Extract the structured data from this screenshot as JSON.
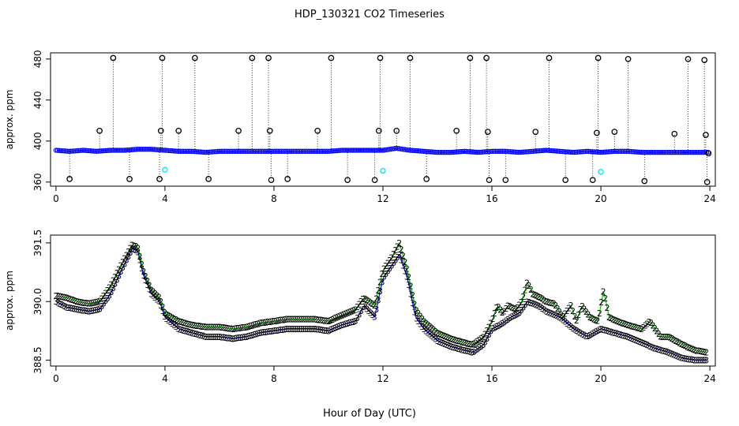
{
  "title": "HDP_130321  CO2 Timeseries",
  "xlabel": "Hour of Day (UTC)",
  "colors": {
    "black": "#000000",
    "blue": "#0000ff",
    "green": "#00cc00",
    "cyan": "#00e5e5"
  },
  "chart_data": [
    {
      "type": "scatter",
      "ylabel": "approx. ppm",
      "xlim": [
        -0.2,
        24.2
      ],
      "ylim": [
        356,
        486
      ],
      "xticks": [
        0,
        4,
        8,
        12,
        16,
        20,
        24
      ],
      "yticks": [
        360,
        400,
        440,
        480
      ],
      "base": {
        "x": [
          0,
          0.5,
          1,
          1.5,
          2,
          2.5,
          3,
          3.5,
          4,
          4.5,
          5,
          5.5,
          6,
          6.5,
          7,
          7.5,
          8,
          8.5,
          9,
          9.5,
          10,
          10.5,
          11,
          11.5,
          12,
          12.5,
          13,
          13.5,
          14,
          14.5,
          15,
          15.5,
          16,
          16.5,
          17,
          17.5,
          18,
          18.5,
          19,
          19.5,
          20,
          20.5,
          21,
          21.5,
          22,
          22.5,
          23,
          23.5,
          24
        ],
        "y": [
          391,
          390,
          391,
          390,
          391,
          391,
          392,
          392,
          391,
          390,
          390,
          389,
          390,
          390,
          390,
          390,
          390,
          390,
          390,
          390,
          390,
          391,
          391,
          391,
          391,
          393,
          391,
          390,
          389,
          389,
          390,
          389,
          390,
          390,
          389,
          390,
          391,
          390,
          389,
          390,
          389,
          390,
          390,
          389,
          389,
          389,
          389,
          389,
          389
        ]
      },
      "outliers_high": [
        {
          "x": 1.6,
          "y": 410
        },
        {
          "x": 2.1,
          "y": 481
        },
        {
          "x": 3.9,
          "y": 481
        },
        {
          "x": 3.85,
          "y": 410
        },
        {
          "x": 4.5,
          "y": 410
        },
        {
          "x": 5.1,
          "y": 481
        },
        {
          "x": 6.7,
          "y": 410
        },
        {
          "x": 7.2,
          "y": 481
        },
        {
          "x": 7.8,
          "y": 481
        },
        {
          "x": 7.85,
          "y": 410
        },
        {
          "x": 9.6,
          "y": 410
        },
        {
          "x": 10.1,
          "y": 481
        },
        {
          "x": 11.9,
          "y": 481
        },
        {
          "x": 11.85,
          "y": 410
        },
        {
          "x": 12.5,
          "y": 410
        },
        {
          "x": 13.0,
          "y": 481
        },
        {
          "x": 14.7,
          "y": 410
        },
        {
          "x": 15.2,
          "y": 481
        },
        {
          "x": 15.8,
          "y": 481
        },
        {
          "x": 15.85,
          "y": 409
        },
        {
          "x": 17.6,
          "y": 409
        },
        {
          "x": 18.1,
          "y": 481
        },
        {
          "x": 19.9,
          "y": 481
        },
        {
          "x": 19.85,
          "y": 408
        },
        {
          "x": 20.5,
          "y": 409
        },
        {
          "x": 21.0,
          "y": 480
        },
        {
          "x": 22.7,
          "y": 407
        },
        {
          "x": 23.2,
          "y": 480
        },
        {
          "x": 23.8,
          "y": 479
        },
        {
          "x": 23.85,
          "y": 406
        }
      ],
      "outliers_low": [
        {
          "x": 0.5,
          "y": 363
        },
        {
          "x": 2.7,
          "y": 363
        },
        {
          "x": 3.8,
          "y": 363
        },
        {
          "x": 5.6,
          "y": 363
        },
        {
          "x": 7.9,
          "y": 362
        },
        {
          "x": 8.5,
          "y": 363
        },
        {
          "x": 10.7,
          "y": 362
        },
        {
          "x": 11.7,
          "y": 362
        },
        {
          "x": 13.6,
          "y": 363
        },
        {
          "x": 15.9,
          "y": 362
        },
        {
          "x": 16.5,
          "y": 362
        },
        {
          "x": 18.7,
          "y": 362
        },
        {
          "x": 19.7,
          "y": 362
        },
        {
          "x": 21.6,
          "y": 361
        },
        {
          "x": 23.9,
          "y": 360
        }
      ],
      "cyan_points": [
        {
          "x": 4.0,
          "y": 372
        },
        {
          "x": 12.0,
          "y": 371
        },
        {
          "x": 20.0,
          "y": 370
        }
      ],
      "last_point": {
        "x": 23.95,
        "y": 388
      }
    },
    {
      "type": "line",
      "ylabel": "approx. ppm",
      "xlim": [
        -0.2,
        24.2
      ],
      "ylim": [
        388.35,
        391.7
      ],
      "xticks": [
        0,
        4,
        8,
        12,
        16,
        20,
        24
      ],
      "yticks": [
        388.5,
        390.0,
        391.5
      ],
      "ytick_labels": [
        "388.5",
        "390.0",
        "391.5"
      ],
      "series": [
        {
          "marker": "3",
          "x": [
            0,
            0.4,
            0.8,
            1.2,
            1.6,
            2.0,
            2.4,
            2.8,
            3.0,
            3.2,
            3.5,
            3.8,
            4.0,
            4.5,
            5.0,
            5.5,
            6.0,
            6.5,
            7.0,
            7.5,
            8.0,
            8.5,
            9.0,
            9.5,
            10.0,
            10.5,
            11.0,
            11.3,
            11.7,
            12.0,
            12.3,
            12.6,
            12.9,
            13.2,
            13.5,
            14.0,
            14.5,
            15.0,
            15.3,
            15.7,
            16.0,
            16.3,
            16.7,
            17.0,
            17.3,
            17.7,
            18.0,
            18.5,
            19.0,
            19.5,
            20.0,
            20.5,
            21.0,
            21.5,
            22.0,
            22.5,
            23.0,
            23.5,
            23.9
          ],
          "y": [
            390.0,
            389.85,
            389.8,
            389.75,
            389.8,
            390.2,
            390.8,
            391.35,
            391.3,
            390.7,
            390.2,
            390.0,
            389.6,
            389.3,
            389.2,
            389.1,
            389.1,
            389.05,
            389.1,
            389.2,
            389.25,
            389.3,
            389.3,
            389.3,
            389.25,
            389.4,
            389.5,
            389.9,
            389.6,
            390.6,
            390.9,
            391.2,
            390.6,
            389.6,
            389.3,
            389.0,
            388.85,
            388.75,
            388.7,
            388.9,
            389.3,
            389.4,
            389.6,
            389.7,
            390.0,
            389.9,
            389.75,
            389.6,
            389.3,
            389.1,
            389.3,
            389.2,
            389.1,
            388.95,
            388.8,
            388.7,
            388.55,
            388.5,
            388.5
          ]
        },
        {
          "marker": "2",
          "x": [
            0,
            0.4,
            0.8,
            1.2,
            1.6,
            2.0,
            2.4,
            2.8,
            3.0,
            3.2,
            3.5,
            3.8,
            4.0,
            4.5,
            5.0,
            5.5,
            6.0,
            6.5,
            7.0,
            7.5,
            8.0,
            8.5,
            9.0,
            9.5,
            10.0,
            10.5,
            11.0,
            11.3,
            11.7,
            12.0,
            12.3,
            12.6,
            12.9,
            13.2,
            13.5,
            14.0,
            14.5,
            15.0,
            15.3,
            15.7,
            16.0,
            16.2,
            16.4,
            16.6,
            16.9,
            17.1,
            17.3,
            17.5,
            17.8,
            18.0,
            18.3,
            18.6,
            18.9,
            19.1,
            19.3,
            19.6,
            19.9,
            20.1,
            20.3,
            20.6,
            21.0,
            21.5,
            21.8,
            22.2,
            22.5,
            23.0,
            23.5,
            23.9
          ],
          "y": [
            390.15,
            390.1,
            390.0,
            389.95,
            390.0,
            390.4,
            390.95,
            391.45,
            391.4,
            390.8,
            390.3,
            390.1,
            389.7,
            389.5,
            389.4,
            389.35,
            389.35,
            389.3,
            389.35,
            389.45,
            389.5,
            389.55,
            389.55,
            389.55,
            389.5,
            389.65,
            389.8,
            390.1,
            389.9,
            390.8,
            391.1,
            391.5,
            390.8,
            389.8,
            389.5,
            389.2,
            389.05,
            388.95,
            388.9,
            389.1,
            389.5,
            389.9,
            389.7,
            389.9,
            389.8,
            390.0,
            390.5,
            390.2,
            390.1,
            390.0,
            389.95,
            389.6,
            389.9,
            389.5,
            389.9,
            389.6,
            389.5,
            390.3,
            389.6,
            389.5,
            389.4,
            389.3,
            389.5,
            389.1,
            389.1,
            388.9,
            388.75,
            388.7
          ]
        }
      ]
    }
  ]
}
